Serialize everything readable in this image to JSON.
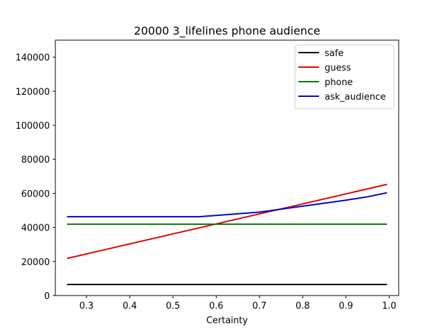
{
  "chart_data": {
    "type": "line",
    "title": "20000 3_lifelines phone audience",
    "xlabel": "Certainty",
    "ylabel": "",
    "xlim": [
      0.228,
      1.022
    ],
    "ylim": [
      0,
      150000
    ],
    "xticks": [
      0.3,
      0.4,
      0.5,
      0.6,
      0.7,
      0.8,
      0.9,
      1.0
    ],
    "xtick_labels": [
      "0.3",
      "0.4",
      "0.5",
      "0.6",
      "0.7",
      "0.8",
      "0.9",
      "1.0"
    ],
    "yticks": [
      0,
      20000,
      40000,
      60000,
      80000,
      100000,
      120000,
      140000
    ],
    "ytick_labels": [
      "0",
      "20000",
      "40000",
      "60000",
      "80000",
      "100000",
      "120000",
      "140000"
    ],
    "grid": false,
    "legend_position": "upper right",
    "series": [
      {
        "name": "safe",
        "color": "#000000",
        "x": [
          0.255,
          0.995
        ],
        "y": [
          6500,
          6500
        ]
      },
      {
        "name": "guess",
        "color": "#e00000",
        "x": [
          0.255,
          0.995
        ],
        "y": [
          21800,
          65300
        ]
      },
      {
        "name": "phone",
        "color": "#007a00",
        "x": [
          0.255,
          0.995
        ],
        "y": [
          41900,
          41900
        ]
      },
      {
        "name": "ask_audience",
        "color": "#0000cc",
        "x": [
          0.255,
          0.56,
          0.7,
          0.8,
          0.9,
          0.95,
          0.995
        ],
        "y": [
          46300,
          46300,
          49000,
          52500,
          56000,
          58000,
          60400
        ]
      }
    ]
  }
}
